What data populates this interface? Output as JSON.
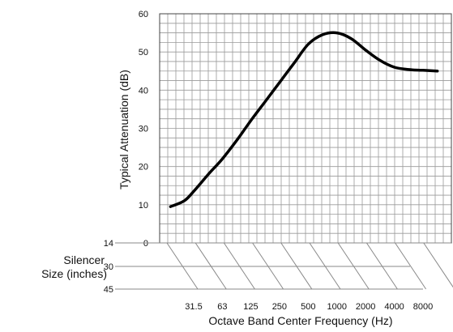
{
  "chart_data": {
    "type": "line",
    "xlabel": "Octave Band Center Frequency (Hz)",
    "ylabel": "Typical Attenuation (dB)",
    "ylim": [
      0,
      60
    ],
    "yticks": [
      "0",
      "10",
      "20",
      "30",
      "40",
      "50",
      "60"
    ],
    "xticks": [
      "31.5",
      "63",
      "125",
      "250",
      "500",
      "1000",
      "2000",
      "4000",
      "8000"
    ],
    "x_scale": "log2 (octave bands)",
    "grid": true,
    "series": [
      {
        "color": "#000000",
        "points": [
          {
            "x": 18,
            "y": 9.5
          },
          {
            "x": 25,
            "y": 11
          },
          {
            "x": 31.5,
            "y": 13.5
          },
          {
            "x": 45,
            "y": 18
          },
          {
            "x": 63,
            "y": 22
          },
          {
            "x": 90,
            "y": 27
          },
          {
            "x": 125,
            "y": 32
          },
          {
            "x": 177,
            "y": 37
          },
          {
            "x": 250,
            "y": 42
          },
          {
            "x": 354,
            "y": 47
          },
          {
            "x": 500,
            "y": 52
          },
          {
            "x": 707,
            "y": 54.5
          },
          {
            "x": 1000,
            "y": 55
          },
          {
            "x": 1414,
            "y": 53.5
          },
          {
            "x": 2000,
            "y": 50.5
          },
          {
            "x": 2828,
            "y": 47.8
          },
          {
            "x": 4000,
            "y": 46
          },
          {
            "x": 5657,
            "y": 45.4
          },
          {
            "x": 8000,
            "y": 45.2
          },
          {
            "x": 11314,
            "y": 45
          }
        ]
      }
    ],
    "silencer_size": {
      "label_line1": "Silencer",
      "label_line2": "Size (inches)",
      "rows": [
        "14",
        "30",
        "45"
      ]
    }
  }
}
